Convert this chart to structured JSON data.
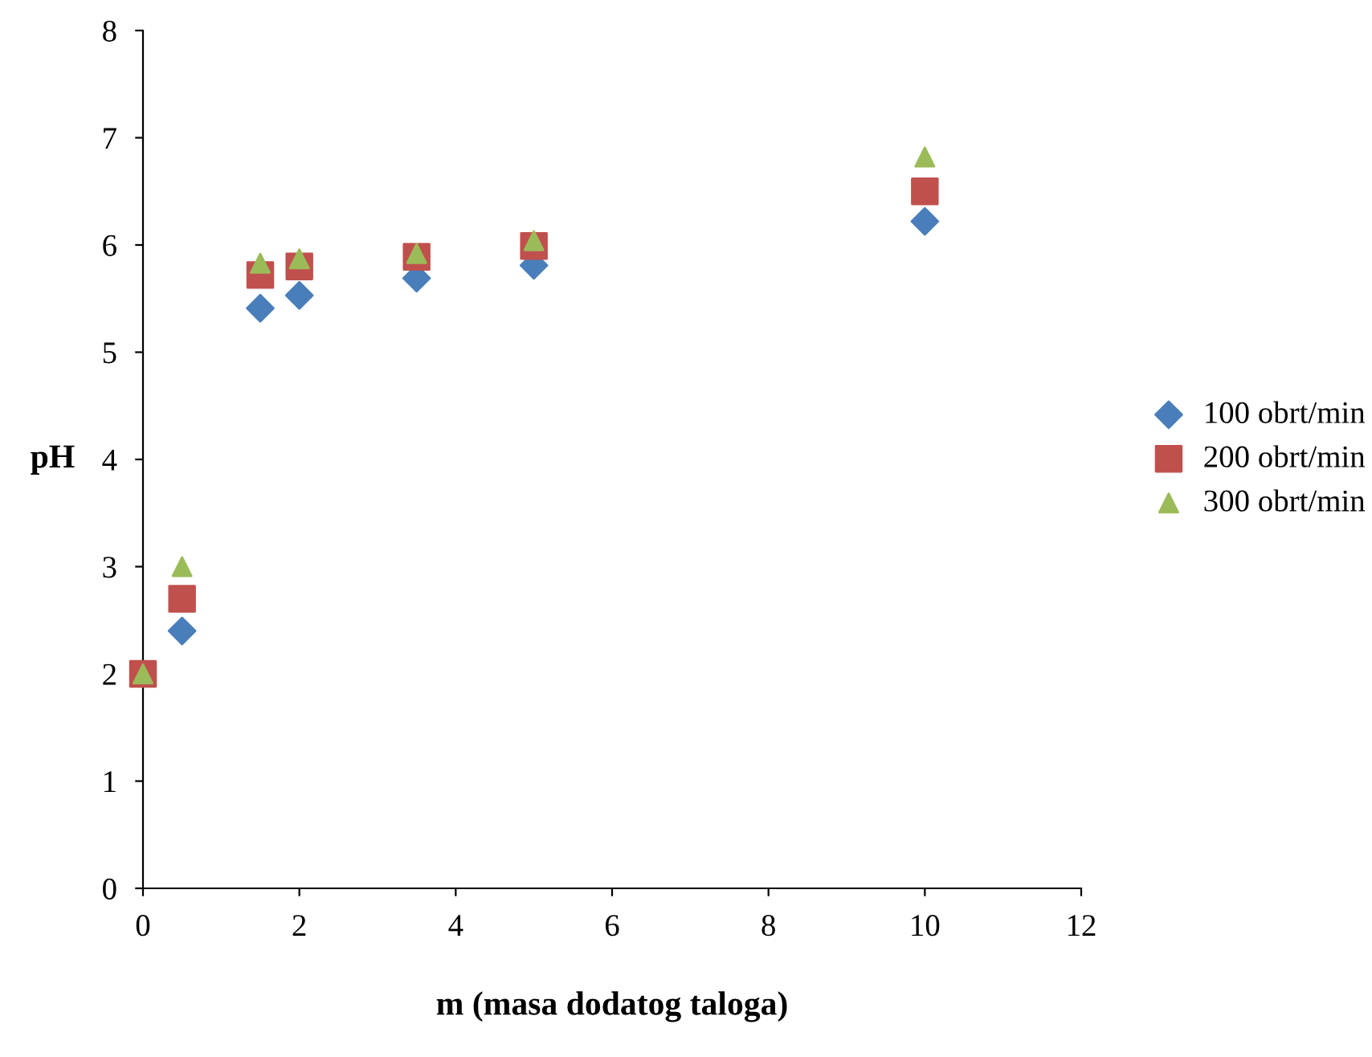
{
  "chart_data": {
    "type": "scatter",
    "xlabel": "m (masa dodatog taloga)",
    "ylabel": "pH",
    "x": [
      0,
      0.5,
      1.5,
      2,
      3.5,
      5,
      10
    ],
    "series": [
      {
        "name": "100 obrt/min",
        "color": "#4a7ebb",
        "marker": "diamond",
        "values": [
          null,
          2.4,
          5.41,
          5.53,
          5.69,
          5.81,
          6.22
        ]
      },
      {
        "name": "200 obrt/min",
        "color": "#c0504d",
        "marker": "square",
        "values": [
          2.0,
          2.7,
          5.72,
          5.8,
          5.89,
          5.99,
          6.5
        ]
      },
      {
        "name": "300 obrt/min",
        "color": "#9bbb59",
        "marker": "triangle",
        "values": [
          2.0,
          3.0,
          5.83,
          5.87,
          5.92,
          6.04,
          6.82
        ]
      }
    ],
    "xlim": [
      0,
      12
    ],
    "xticks": [
      0,
      2,
      4,
      6,
      8,
      10,
      12
    ],
    "ylim": [
      0,
      8
    ],
    "yticks": [
      0,
      1,
      2,
      3,
      4,
      5,
      6,
      7,
      8
    ],
    "grid": false,
    "legend": "right"
  }
}
